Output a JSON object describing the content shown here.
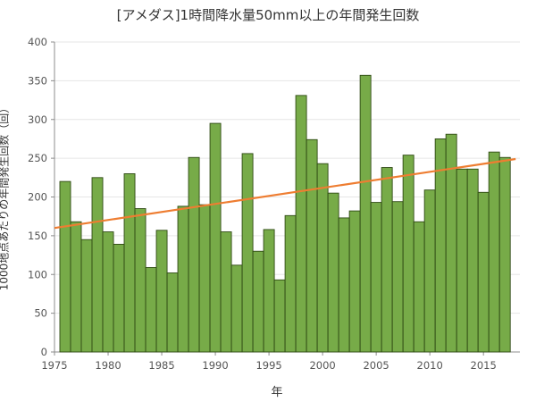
{
  "chart_data": {
    "type": "bar",
    "title": "[アメダス]1時間降水量50mm以上の年間発生回数",
    "xlabel": "年",
    "ylabel": "1000地点あたりの年間発生回数（回）",
    "x": [
      1976,
      1977,
      1978,
      1979,
      1980,
      1981,
      1982,
      1983,
      1984,
      1985,
      1986,
      1987,
      1988,
      1989,
      1990,
      1991,
      1992,
      1993,
      1994,
      1995,
      1996,
      1997,
      1998,
      1999,
      2000,
      2001,
      2002,
      2003,
      2004,
      2005,
      2006,
      2007,
      2008,
      2009,
      2010,
      2011,
      2012,
      2013,
      2014,
      2015,
      2016,
      2017
    ],
    "values": [
      220,
      168,
      145,
      225,
      155,
      139,
      230,
      185,
      109,
      157,
      102,
      188,
      251,
      190,
      295,
      155,
      112,
      256,
      130,
      158,
      93,
      176,
      331,
      274,
      243,
      205,
      173,
      182,
      357,
      193,
      238,
      194,
      254,
      168,
      209,
      275,
      281,
      236,
      236,
      206,
      258,
      251
    ],
    "xlim": [
      1975,
      2018.4
    ],
    "ylim": [
      0,
      400
    ],
    "x_ticks": [
      1975,
      1980,
      1985,
      1990,
      1995,
      2000,
      2005,
      2010,
      2015
    ],
    "y_ticks": [
      0,
      50,
      100,
      150,
      200,
      250,
      300,
      350,
      400
    ],
    "trend": {
      "x0": 1975,
      "y0": 160,
      "x1": 2018,
      "y1": 249
    },
    "grid": "horizontal",
    "bar_color": "#77ab48",
    "bar_edge": "#2f4a14",
    "trend_color": "#ee7d31"
  }
}
